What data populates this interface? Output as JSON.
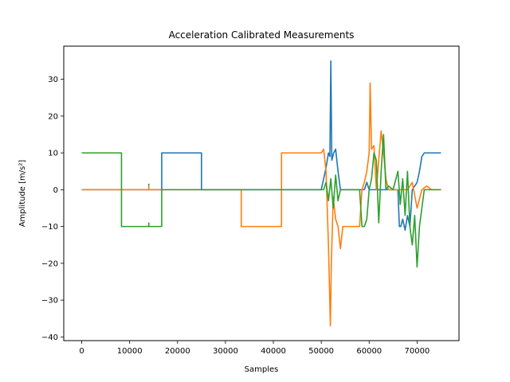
{
  "chart_data": {
    "type": "line",
    "title": "Acceleration Calibrated Measurements",
    "xlabel": "Samples",
    "ylabel": "Amplitude [m/s²]",
    "xlim": [
      -3750,
      78750
    ],
    "ylim": [
      -41,
      39
    ],
    "xticks": [
      0,
      10000,
      20000,
      30000,
      40000,
      50000,
      60000,
      70000
    ],
    "xtick_labels": [
      "0",
      "10000",
      "20000",
      "30000",
      "40000",
      "50000",
      "60000",
      "70000"
    ],
    "yticks": [
      -40,
      -30,
      -20,
      -10,
      0,
      10,
      20,
      30
    ],
    "ytick_labels": [
      "−40",
      "−30",
      "−20",
      "−10",
      "0",
      "10",
      "20",
      "30"
    ],
    "grid": false,
    "colors": [
      "#1f77b4",
      "#ff7f0e",
      "#2ca02c"
    ],
    "series": [
      {
        "color": "#1f77b4",
        "x": [
          0,
          8300,
          8300,
          14000,
          14000,
          14000,
          16700,
          16700,
          25000,
          25000,
          33300,
          33300,
          41700,
          41700,
          50000,
          50500,
          51000,
          51500,
          51800,
          52000,
          52200,
          52600,
          53000,
          53500,
          54000,
          55000,
          56000,
          57000,
          58000,
          58500,
          59000,
          59500,
          60000,
          61000,
          62000,
          63000,
          64000,
          65000,
          66000,
          66300,
          66600,
          67000,
          67500,
          68000,
          68500,
          69000,
          70000,
          70500,
          71000,
          71500,
          72000,
          73000,
          74000,
          75000
        ],
        "y": [
          0,
          0,
          0,
          0,
          1.5,
          0,
          0,
          10,
          10,
          0,
          0,
          0,
          0,
          0,
          0,
          3,
          6,
          10,
          9,
          35,
          8,
          10,
          11,
          5,
          0,
          0,
          0,
          0,
          0,
          0,
          0,
          2,
          0,
          0,
          0,
          0,
          0,
          0,
          0,
          -10,
          -10,
          -8,
          -11,
          -7,
          -10,
          0,
          2,
          5,
          9,
          10,
          10,
          10,
          10,
          10
        ]
      },
      {
        "color": "#ff7f0e",
        "x": [
          0,
          14000,
          14000,
          14000,
          33300,
          33300,
          41700,
          41700,
          48000,
          50000,
          50500,
          51000,
          51500,
          51900,
          52100,
          52500,
          53000,
          53500,
          54000,
          54500,
          55000,
          56000,
          58000,
          58500,
          59000,
          59500,
          60000,
          60200,
          60500,
          61000,
          61500,
          62000,
          62500,
          63000,
          63500,
          64000,
          65000,
          66000,
          67000,
          68000,
          69000,
          70000,
          71000,
          72000,
          73000,
          74000,
          75000
        ],
        "y": [
          0,
          0,
          1,
          0,
          0,
          -10,
          -10,
          10,
          10,
          10,
          11,
          5,
          -15,
          -37,
          -20,
          -2,
          -8,
          -10,
          -16,
          -10,
          -10,
          -10,
          -10,
          0,
          2,
          5,
          10,
          29,
          11,
          12,
          0,
          8,
          16,
          10,
          3,
          0,
          0,
          0,
          0,
          0,
          2,
          -5,
          0,
          1,
          0,
          0,
          0
        ]
      },
      {
        "color": "#2ca02c",
        "x": [
          0,
          8300,
          8300,
          14000,
          14000,
          14000,
          16700,
          16700,
          50000,
          50500,
          51000,
          51500,
          52000,
          52500,
          53000,
          53500,
          54000,
          55000,
          56000,
          57000,
          58000,
          58500,
          59000,
          59500,
          60000,
          60500,
          61000,
          61500,
          62000,
          62500,
          63000,
          63500,
          64000,
          65000,
          66000,
          66500,
          67000,
          67500,
          68000,
          68500,
          69000,
          69500,
          70000,
          70500,
          71000,
          71500,
          72000,
          73000,
          74000,
          75000
        ],
        "y": [
          10,
          10,
          -10,
          -10,
          -9,
          -10,
          -10,
          0,
          0,
          0,
          2,
          -3,
          3,
          -5,
          4,
          -3,
          0,
          0,
          0,
          0,
          0,
          -10,
          -10,
          -8,
          0,
          3,
          10,
          8,
          -9,
          5,
          15,
          0,
          1,
          0,
          5,
          -4,
          3,
          -7,
          5,
          -10,
          -15,
          -7,
          -21,
          -10,
          -5,
          0,
          0,
          0,
          0,
          0
        ]
      }
    ]
  }
}
